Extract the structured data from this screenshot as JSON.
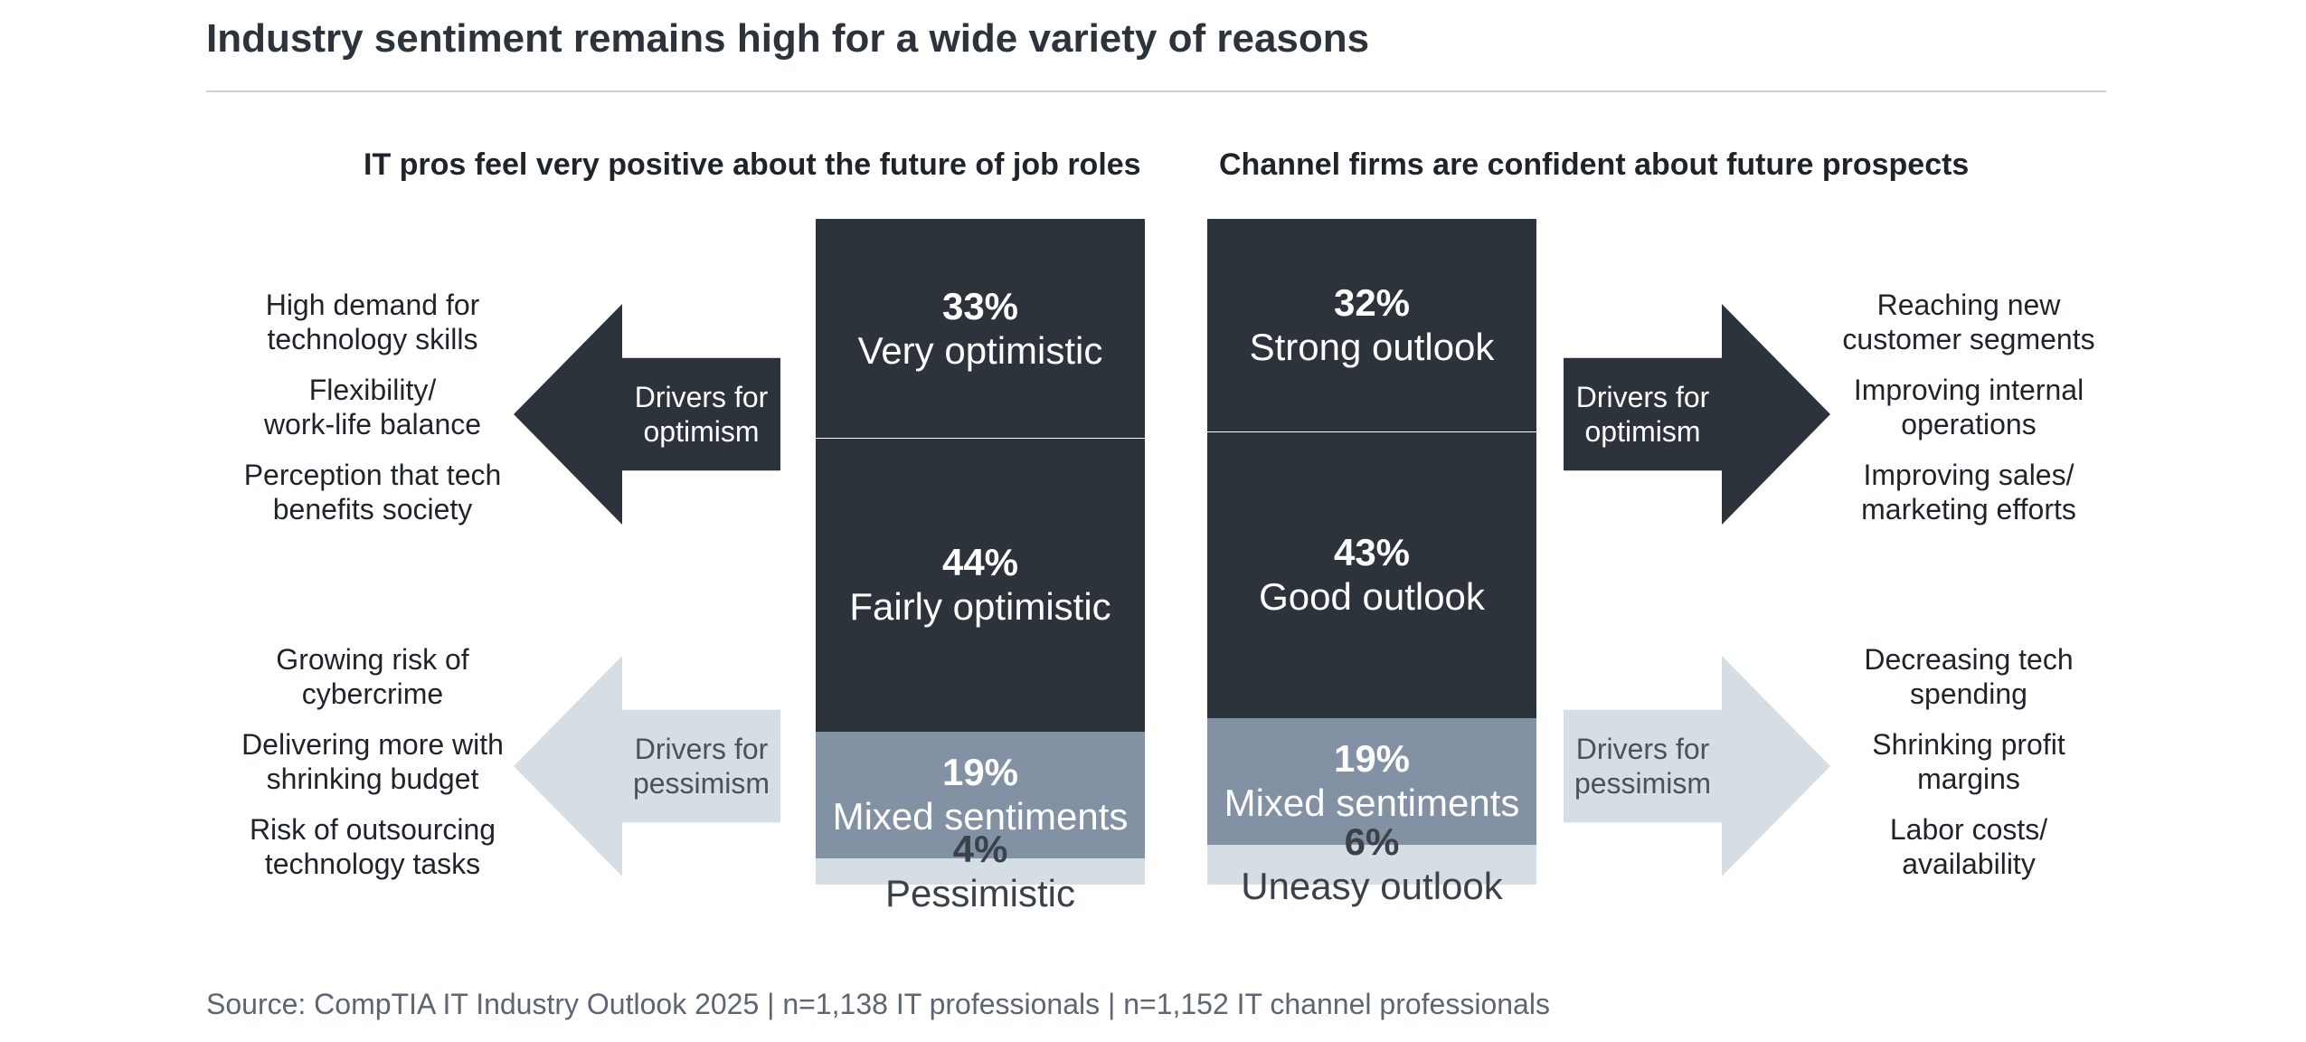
{
  "title": "Industry sentiment remains high for a wide variety of reasons",
  "source": "Source: CompTIA IT Industry Outlook 2025 | n=1,138 IT professionals | n=1,152 IT channel professionals",
  "colors": {
    "dark": "#2d333b",
    "mid": "#8291a3",
    "light": "#d5dde5",
    "white": "#ffffff"
  },
  "chart_data": [
    {
      "type": "bar",
      "title": "IT pros feel very positive about the future of job roles",
      "stacked": true,
      "categories": [
        "Very optimistic",
        "Fairly optimistic",
        "Mixed sentiments",
        "Pessimistic"
      ],
      "values": [
        33,
        44,
        19,
        4
      ],
      "value_labels": [
        "33%",
        "44%",
        "19%",
        "4%"
      ],
      "optimism_drivers_label": [
        "Drivers for",
        "optimism"
      ],
      "pessimism_drivers_label": [
        "Drivers for",
        "pessimism"
      ],
      "optimism_drivers": [
        [
          "High demand for",
          "technology skills"
        ],
        [
          "Flexibility/",
          "work-life balance"
        ],
        [
          "Perception that tech",
          "benefits society"
        ]
      ],
      "pessimism_drivers": [
        [
          "Growing risk of",
          "cybercrime"
        ],
        [
          "Delivering more with",
          "shrinking budget"
        ],
        [
          "Risk of outsourcing",
          "technology tasks"
        ]
      ]
    },
    {
      "type": "bar",
      "title": "Channel firms are confident about future prospects",
      "stacked": true,
      "categories": [
        "Strong outlook",
        "Good outlook",
        "Mixed sentiments",
        "Uneasy outlook"
      ],
      "values": [
        32,
        43,
        19,
        6
      ],
      "value_labels": [
        "32%",
        "43%",
        "19%",
        "6%"
      ],
      "optimism_drivers_label": [
        "Drivers for",
        "optimism"
      ],
      "pessimism_drivers_label": [
        "Drivers for",
        "pessimism"
      ],
      "optimism_drivers": [
        [
          "Reaching new",
          "customer segments"
        ],
        [
          "Improving internal",
          "operations"
        ],
        [
          "Improving sales/",
          "marketing efforts"
        ]
      ],
      "pessimism_drivers": [
        [
          "Decreasing tech",
          "spending"
        ],
        [
          "Shrinking profit",
          "margins"
        ],
        [
          "Labor costs/",
          "availability"
        ]
      ]
    }
  ]
}
